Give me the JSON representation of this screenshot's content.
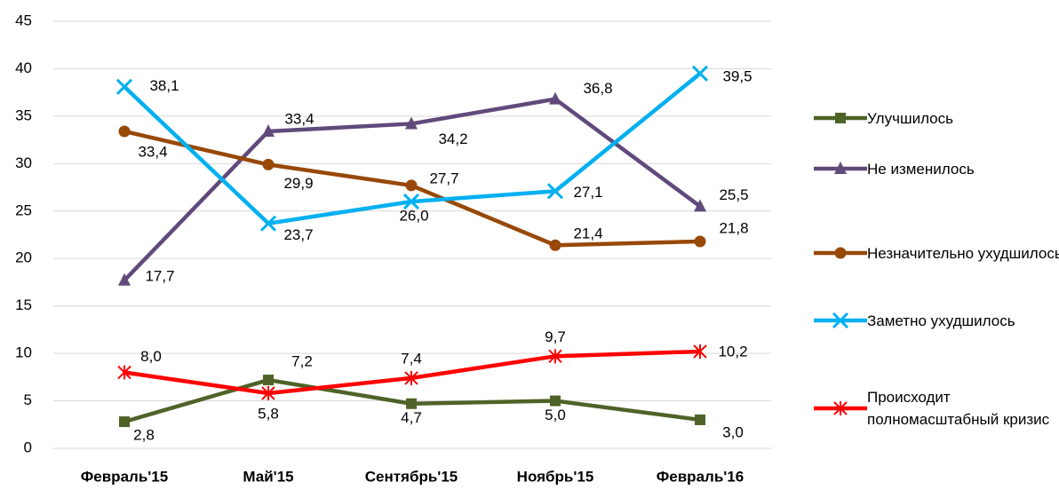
{
  "chart_data": {
    "type": "line",
    "categories": [
      "Февраль'15",
      "Май'15",
      "Сентябрь'15",
      "Ноябрь'15",
      "Февраль'16"
    ],
    "series": [
      {
        "name": "Улучшилось",
        "color": "#4f6228",
        "marker": "square",
        "values": [
          2.8,
          7.2,
          4.7,
          5.0,
          3.0
        ],
        "value_labels": [
          "2,8",
          "7,2",
          "4,7",
          "5,0",
          "3,0"
        ]
      },
      {
        "name": "Не изменилось",
        "color": "#604a7b",
        "marker": "triangle",
        "values": [
          17.7,
          33.4,
          34.2,
          36.8,
          25.5
        ],
        "value_labels": [
          "17,7",
          "33,4",
          "34,2",
          "36,8",
          "25,5"
        ]
      },
      {
        "name": "Незначительно ухудшилось",
        "color": "#984807",
        "marker": "circle",
        "values": [
          33.4,
          29.9,
          27.7,
          21.4,
          21.8
        ],
        "value_labels": [
          "33,4",
          "29,9",
          "27,7",
          "21,4",
          "21,8"
        ]
      },
      {
        "name": "Заметно ухудшилось",
        "color": "#00b0f0",
        "marker": "x",
        "values": [
          38.1,
          23.7,
          26.0,
          27.1,
          39.5
        ],
        "value_labels": [
          "38,1",
          "23,7",
          "26,0",
          "27,1",
          "39,5"
        ]
      },
      {
        "name": "Происходит полномасштабный кризис",
        "color": "#ff0000",
        "marker": "star",
        "values": [
          8.0,
          5.8,
          7.4,
          9.7,
          10.2
        ],
        "value_labels": [
          "8,0",
          "5,8",
          "7,4",
          "9,7",
          "10,2"
        ]
      }
    ],
    "ylim": [
      0,
      45
    ],
    "yticks": [
      0,
      5,
      10,
      15,
      20,
      25,
      30,
      35,
      40,
      45
    ],
    "grid": true,
    "legend": "right"
  }
}
